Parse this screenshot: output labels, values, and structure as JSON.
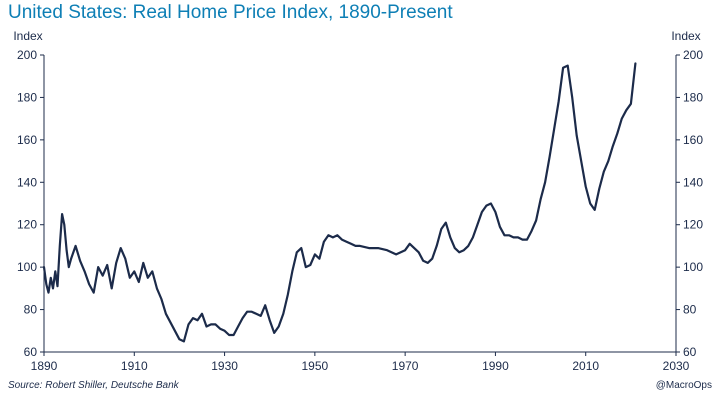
{
  "header": {
    "title": "United States: Real Home Price Index, 1890-Present"
  },
  "footer": {
    "source": "Source: Robert Shiller, Deutsche Bank",
    "credit": "@MacroOps"
  },
  "colors": {
    "title": "#0e7fb5",
    "line": "#1c2b4a",
    "axis": "#1c2b4a"
  },
  "chart_data": {
    "type": "line",
    "title": "United States: Real Home Price Index, 1890-Present",
    "ylabel_left": "Index",
    "ylabel_right": "Index",
    "xlim": [
      1890,
      2030
    ],
    "ylim": [
      60,
      200
    ],
    "xticks": [
      1890,
      1910,
      1930,
      1950,
      1970,
      1990,
      2010,
      2030
    ],
    "yticks": [
      60,
      80,
      100,
      120,
      140,
      160,
      180,
      200
    ],
    "grid": false,
    "series": [
      {
        "name": "Real Home Price Index",
        "x": [
          1890,
          1890.5,
          1891,
          1891.5,
          1892,
          1892.5,
          1893,
          1893.5,
          1894,
          1894.5,
          1895,
          1895.5,
          1896,
          1897,
          1898,
          1899,
          1900,
          1901,
          1902,
          1903,
          1904,
          1905,
          1906,
          1907,
          1908,
          1909,
          1910,
          1911,
          1912,
          1913,
          1914,
          1915,
          1916,
          1917,
          1918,
          1919,
          1920,
          1921,
          1922,
          1923,
          1924,
          1925,
          1926,
          1927,
          1928,
          1929,
          1930,
          1931,
          1932,
          1933,
          1934,
          1935,
          1936,
          1937,
          1938,
          1939,
          1940,
          1941,
          1942,
          1943,
          1944,
          1945,
          1946,
          1947,
          1948,
          1949,
          1950,
          1951,
          1952,
          1953,
          1954,
          1955,
          1956,
          1957,
          1958,
          1959,
          1960,
          1962,
          1964,
          1966,
          1968,
          1970,
          1971,
          1972,
          1973,
          1974,
          1975,
          1976,
          1977,
          1978,
          1979,
          1980,
          1981,
          1982,
          1983,
          1984,
          1985,
          1986,
          1987,
          1988,
          1989,
          1990,
          1991,
          1992,
          1993,
          1994,
          1995,
          1996,
          1997,
          1998,
          1999,
          2000,
          2001,
          2002,
          2003,
          2004,
          2005,
          2006,
          2007,
          2008,
          2009,
          2010,
          2011,
          2012,
          2013,
          2014,
          2015,
          2016,
          2017,
          2018,
          2019,
          2020,
          2021
        ],
        "values": [
          100,
          92,
          88,
          95,
          90,
          98,
          91,
          110,
          125,
          120,
          108,
          100,
          104,
          110,
          103,
          98,
          92,
          88,
          100,
          96,
          101,
          90,
          102,
          109,
          104,
          95,
          98,
          93,
          102,
          95,
          98,
          90,
          85,
          78,
          74,
          70,
          66,
          65,
          73,
          76,
          75,
          78,
          72,
          73,
          73,
          71,
          70,
          68,
          68,
          72,
          76,
          79,
          79,
          78,
          77,
          82,
          75,
          69,
          72,
          78,
          87,
          98,
          107,
          109,
          100,
          101,
          106,
          104,
          112,
          115,
          114,
          115,
          113,
          112,
          111,
          110,
          110,
          109,
          109,
          108,
          106,
          108,
          111,
          109,
          107,
          103,
          102,
          104,
          110,
          118,
          121,
          114,
          109,
          107,
          108,
          110,
          114,
          120,
          126,
          129,
          130,
          126,
          119,
          115,
          115,
          114,
          114,
          113,
          113,
          117,
          122,
          132,
          140,
          152,
          165,
          178,
          194,
          195,
          180,
          162,
          150,
          138,
          130,
          127,
          137,
          145,
          150,
          157,
          163,
          170,
          174,
          177,
          196
        ]
      }
    ]
  }
}
